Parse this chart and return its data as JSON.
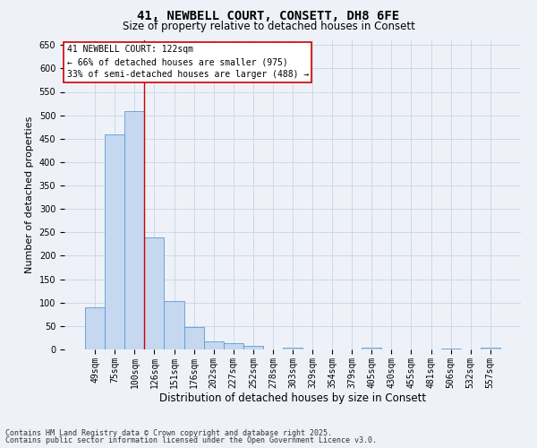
{
  "title_line1": "41, NEWBELL COURT, CONSETT, DH8 6FE",
  "title_line2": "Size of property relative to detached houses in Consett",
  "xlabel": "Distribution of detached houses by size in Consett",
  "ylabel": "Number of detached properties",
  "categories": [
    "49sqm",
    "75sqm",
    "100sqm",
    "126sqm",
    "151sqm",
    "176sqm",
    "202sqm",
    "227sqm",
    "252sqm",
    "278sqm",
    "303sqm",
    "329sqm",
    "354sqm",
    "379sqm",
    "405sqm",
    "430sqm",
    "455sqm",
    "481sqm",
    "506sqm",
    "532sqm",
    "557sqm"
  ],
  "values": [
    90,
    460,
    508,
    240,
    104,
    48,
    18,
    14,
    8,
    0,
    4,
    0,
    0,
    0,
    3,
    0,
    0,
    0,
    2,
    0,
    4
  ],
  "bar_color": "#c5d8f0",
  "bar_edge_color": "#5b9bd5",
  "grid_color": "#c8d4e8",
  "annotation_text_line1": "41 NEWBELL COURT: 122sqm",
  "annotation_text_line2": "← 66% of detached houses are smaller (975)",
  "annotation_text_line3": "33% of semi-detached houses are larger (488) →",
  "annotation_box_facecolor": "#ffffff",
  "annotation_box_edgecolor": "#cc0000",
  "vline_color": "#cc0000",
  "vline_x": 2.5,
  "ylim": [
    0,
    660
  ],
  "yticks": [
    0,
    50,
    100,
    150,
    200,
    250,
    300,
    350,
    400,
    450,
    500,
    550,
    600,
    650
  ],
  "footer_line1": "Contains HM Land Registry data © Crown copyright and database right 2025.",
  "footer_line2": "Contains public sector information licensed under the Open Government Licence v3.0.",
  "background_color": "#eef2f8",
  "title1_fontsize": 10,
  "title2_fontsize": 8.5,
  "ylabel_fontsize": 8,
  "xlabel_fontsize": 8.5,
  "tick_fontsize": 7,
  "annot_fontsize": 7,
  "footer_fontsize": 6
}
